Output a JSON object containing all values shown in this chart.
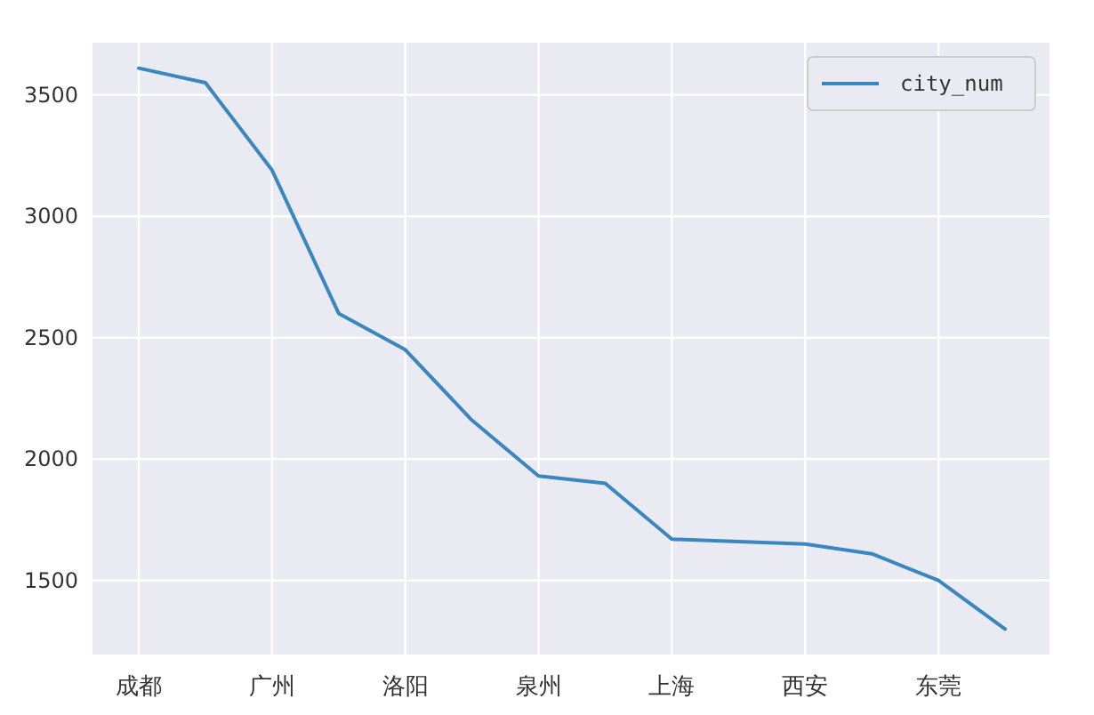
{
  "chart_data": {
    "type": "line",
    "categories": [
      "成都",
      null,
      "广州",
      null,
      "洛阳",
      null,
      "泉州",
      null,
      "上海",
      null,
      "西安",
      null,
      "东莞",
      null
    ],
    "series": [
      {
        "name": "city_num",
        "color": "#3a87c0",
        "values": [
          3610,
          3550,
          3190,
          2600,
          2450,
          2160,
          1930,
          1900,
          1670,
          1660,
          1650,
          1610,
          1500,
          1300
        ]
      }
    ],
    "ylim": [
      1195,
      3715
    ],
    "yticks": [
      1500,
      2000,
      2500,
      3000,
      3500
    ],
    "grid": true,
    "legend": "top right",
    "marker": "none",
    "line_style": "solid"
  }
}
